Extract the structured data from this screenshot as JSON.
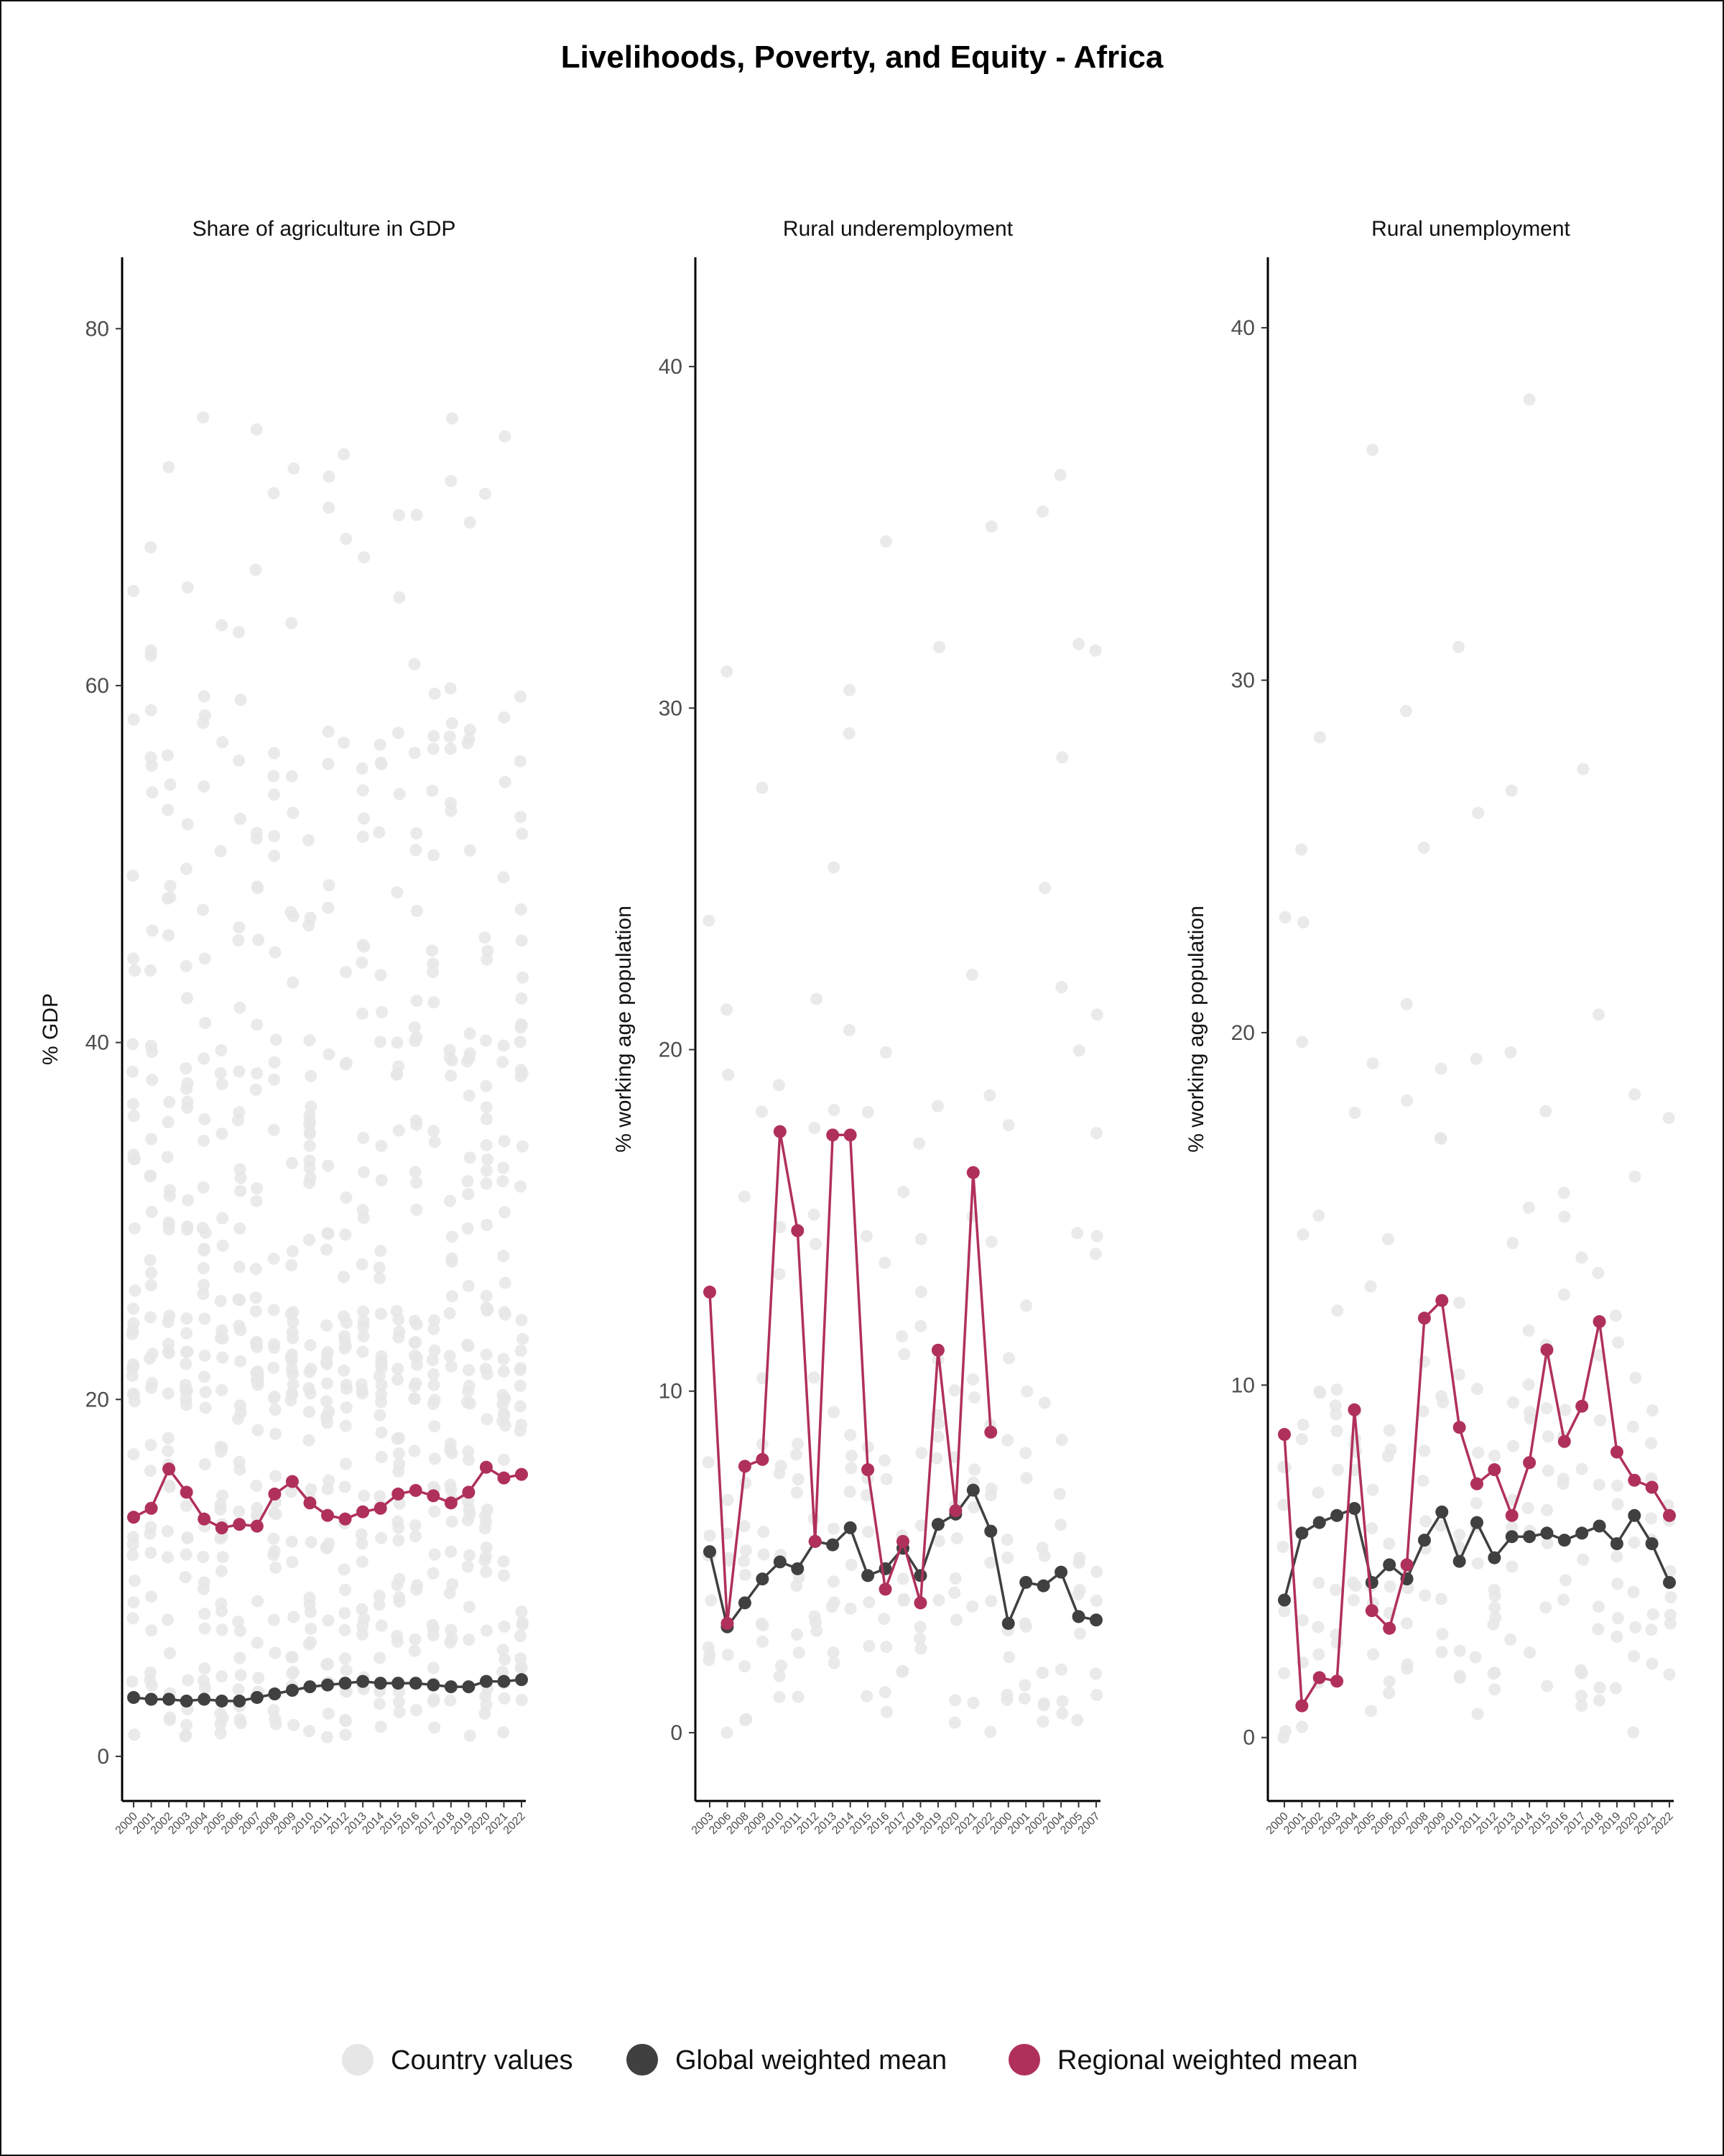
{
  "colors": {
    "country": "#e6e6e6",
    "global": "#404040",
    "regional": "#b0305c"
  },
  "chart_data": {
    "type": "scatter",
    "title": "Livelihoods, Poverty, and Equity - Africa",
    "legend": {
      "placement": "bottom",
      "items": [
        {
          "name": "Country values",
          "color_key": "country"
        },
        {
          "name": "Global weighted mean",
          "color_key": "global"
        },
        {
          "name": "Regional weighted mean",
          "color_key": "regional"
        }
      ]
    },
    "panels": [
      {
        "facet_title": "Share of agriculture in GDP",
        "ylabel": "% GDP",
        "ylim": [
          -2.5,
          84
        ],
        "yticks": [
          0,
          20,
          40,
          60,
          80
        ],
        "x_labels": [
          "2000",
          "2001",
          "2002",
          "2003",
          "2004",
          "2005",
          "2006",
          "2007",
          "2008",
          "2009",
          "2010",
          "2011",
          "2012",
          "2013",
          "2014",
          "2015",
          "2016",
          "2017",
          "2018",
          "2019",
          "2020",
          "2021",
          "2022"
        ],
        "series": [
          {
            "name": "Global weighted mean",
            "color_key": "global",
            "values": [
              3.3,
              3.2,
              3.2,
              3.1,
              3.2,
              3.1,
              3.1,
              3.3,
              3.5,
              3.7,
              3.9,
              4.0,
              4.1,
              4.2,
              4.1,
              4.1,
              4.1,
              4.0,
              3.9,
              3.9,
              4.2,
              4.2,
              4.3
            ]
          },
          {
            "name": "Regional weighted mean",
            "color_key": "regional",
            "values": [
              13.4,
              13.9,
              16.1,
              14.8,
              13.3,
              12.8,
              13.0,
              12.9,
              14.7,
              15.4,
              14.2,
              13.5,
              13.3,
              13.7,
              13.9,
              14.7,
              14.9,
              14.6,
              14.2,
              14.8,
              16.2,
              15.6,
              15.8
            ]
          }
        ]
      },
      {
        "facet_title": "Rural underemployment",
        "ylabel": "% working age population",
        "ylim": [
          -2,
          43.2
        ],
        "yticks": [
          0,
          10,
          20,
          30,
          40
        ],
        "x_labels": [
          "2003",
          "2006",
          "2008",
          "2009",
          "2010",
          "2011",
          "2012",
          "2013",
          "2014",
          "2015",
          "2016",
          "2017",
          "2018",
          "2019",
          "2020",
          "2021",
          "2022",
          "2000",
          "2001",
          "2002",
          "2004",
          "2005",
          "2007"
        ],
        "series": [
          {
            "name": "Global weighted mean",
            "color_key": "global",
            "values": [
              5.3,
              3.1,
              3.8,
              4.5,
              5.0,
              4.8,
              5.6,
              5.5,
              6.0,
              4.6,
              4.8,
              5.4,
              4.6,
              6.1,
              6.4,
              7.1,
              5.9,
              3.2,
              4.4,
              4.3,
              4.7,
              3.4,
              3.3
            ]
          },
          {
            "name": "Regional weighted mean",
            "color_key": "regional",
            "values": [
              12.9,
              3.2,
              7.8,
              8.0,
              17.6,
              14.7,
              5.6,
              17.5,
              17.5,
              7.7,
              4.2,
              5.6,
              3.8,
              11.2,
              6.5,
              16.4,
              8.8,
              null,
              null,
              null,
              null,
              null,
              null
            ]
          }
        ]
      },
      {
        "facet_title": "Rural unemployment",
        "ylabel": "% working age population",
        "ylim": [
          -1.8,
          42
        ],
        "yticks": [
          0,
          10,
          20,
          30,
          40
        ],
        "x_labels": [
          "2000",
          "2001",
          "2002",
          "2003",
          "2004",
          "2005",
          "2006",
          "2007",
          "2008",
          "2009",
          "2010",
          "2011",
          "2012",
          "2013",
          "2014",
          "2015",
          "2016",
          "2017",
          "2018",
          "2019",
          "2020",
          "2021",
          "2022"
        ],
        "series": [
          {
            "name": "Global weighted mean",
            "color_key": "global",
            "values": [
              3.9,
              5.8,
              6.1,
              6.3,
              6.5,
              4.4,
              4.9,
              4.5,
              5.6,
              6.4,
              5.0,
              6.1,
              5.1,
              5.7,
              5.7,
              5.8,
              5.6,
              5.8,
              6.0,
              5.5,
              6.3,
              5.5,
              4.4
            ]
          },
          {
            "name": "Regional weighted mean",
            "color_key": "regional",
            "values": [
              8.6,
              0.9,
              1.7,
              1.6,
              9.3,
              3.6,
              3.1,
              4.9,
              11.9,
              12.4,
              8.8,
              7.2,
              7.6,
              6.3,
              7.8,
              11.0,
              8.4,
              9.4,
              11.8,
              8.1,
              7.3,
              7.1,
              6.3
            ]
          }
        ]
      }
    ]
  }
}
